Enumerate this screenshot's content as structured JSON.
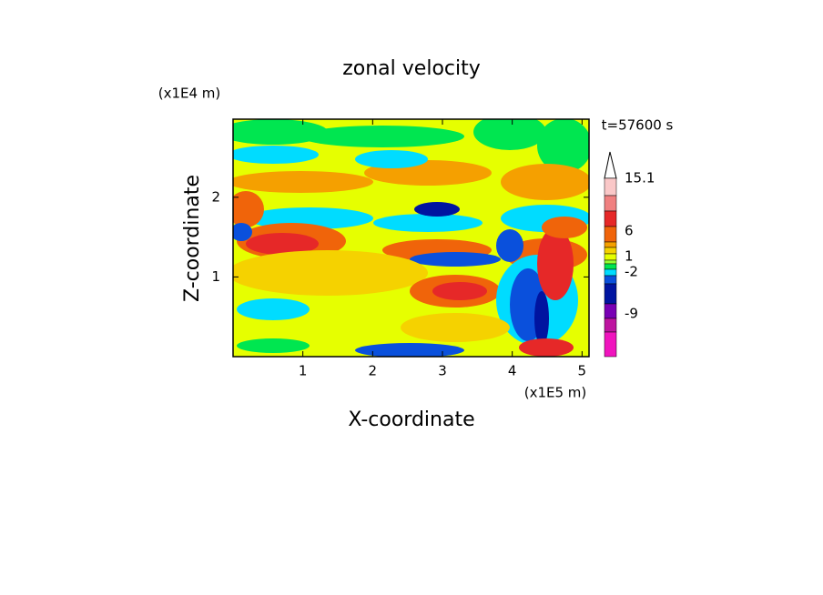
{
  "chart_data": {
    "type": "contour",
    "title": "zonal velocity",
    "x_label": "X-coordinate",
    "y_label": "Z-coordinate",
    "x_unit": "(x1E5 m)",
    "y_unit": "(x1E4 m)",
    "annotation": "t=57600 s",
    "xlim": [
      0,
      5.1
    ],
    "ylim": [
      0,
      2.98
    ],
    "xticks": [
      1,
      2,
      3,
      4,
      5
    ],
    "yticks": [
      1,
      2
    ],
    "colorbar": {
      "colors": [
        "#fac8c8",
        "#f08080",
        "#e62828",
        "#f0640a",
        "#f5a000",
        "#f5d200",
        "#e6ff00",
        "#96ff32",
        "#00e650",
        "#00dcff",
        "#0a50dc",
        "#0014a0",
        "#7800b4",
        "#be14a0",
        "#f014be"
      ],
      "ticks": [
        15.1,
        6,
        1,
        -2,
        -9
      ]
    }
  }
}
